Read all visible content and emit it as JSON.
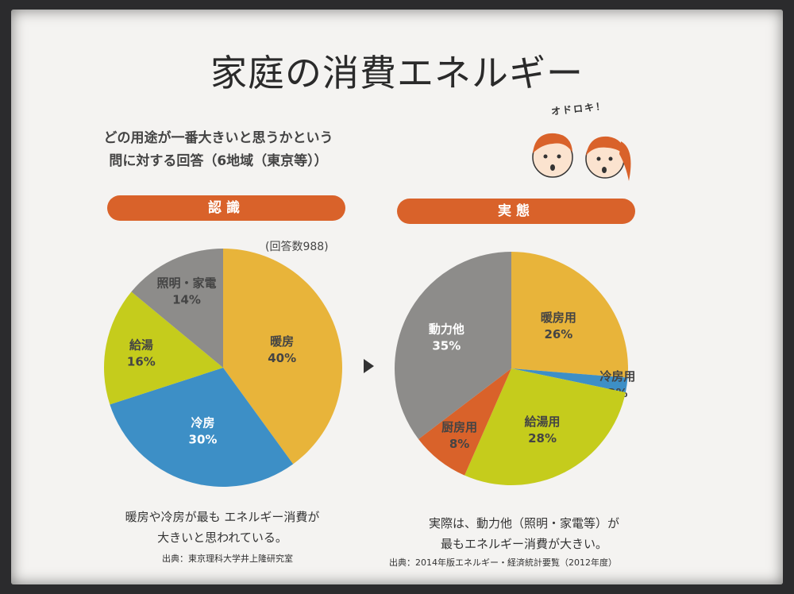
{
  "title": "家庭の消費エネルギー",
  "question": {
    "line1": "どの用途が一番大きいと思うかという",
    "line2": "問に対する回答（6地域（東京等））"
  },
  "surprise_text": "オドロキ！",
  "left_panel": {
    "banner": "認識",
    "count": "(回答数988)",
    "caption_line1": "暖房や冷房が最も エネルギー消費が",
    "caption_line2": "大きいと思われている。",
    "source": "出典：東京理科大学井上隆研究室"
  },
  "right_panel": {
    "banner": "実態",
    "caption_line1": "実際は、動力他（照明・家電等）が",
    "caption_line2": "最もエネルギー消費が大きい。",
    "source": "出典：2014年版エネルギー・経済統計要覧（2012年度）"
  },
  "colors": {
    "banner": "#d9622a",
    "heating": "#e8b43a",
    "cooling": "#3d8fc6",
    "hot_water": "#c5cc1c",
    "lighting": "#8d8c8a",
    "kitchen": "#d9622a"
  },
  "chart_data": [
    {
      "type": "pie",
      "series": [
        {
          "label": "暖房",
          "pct": "40%",
          "value": 40,
          "color": "#e8b43a",
          "light": false
        },
        {
          "label": "冷房",
          "pct": "30%",
          "value": 30,
          "color": "#3d8fc6",
          "light": true
        },
        {
          "label": "給湯",
          "pct": "16%",
          "value": 16,
          "color": "#c5cc1c",
          "light": false
        },
        {
          "label": "照明・家電",
          "pct": "14%",
          "value": 14,
          "color": "#8d8c8a",
          "light": false
        }
      ]
    },
    {
      "type": "pie",
      "series": [
        {
          "label": "暖房用",
          "pct": "26%",
          "value": 26,
          "color": "#e8b43a",
          "light": false
        },
        {
          "label": "冷房用",
          "pct": "2%",
          "value": 2,
          "color": "#3d8fc6",
          "light": false
        },
        {
          "label": "給湯用",
          "pct": "28%",
          "value": 28,
          "color": "#c5cc1c",
          "light": false
        },
        {
          "label": "厨房用",
          "pct": "8%",
          "value": 8,
          "color": "#d9622a",
          "light": false
        },
        {
          "label": "動力他",
          "pct": "35%",
          "value": 35,
          "color": "#8d8c8a",
          "light": true
        }
      ]
    }
  ]
}
